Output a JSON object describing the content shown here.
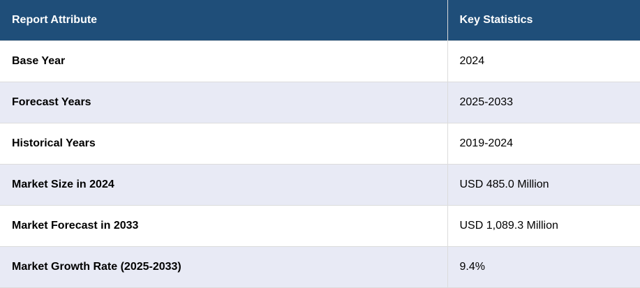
{
  "table": {
    "headers": [
      "Report Attribute",
      "Key Statistics"
    ],
    "rows": [
      [
        "Base Year",
        "2024"
      ],
      [
        "Forecast Years",
        "2025-2033"
      ],
      [
        "Historical Years",
        "2019-2024"
      ],
      [
        "Market Size in 2024",
        "USD 485.0 Million"
      ],
      [
        "Market Forecast in 2033",
        "USD 1,089.3 Million"
      ],
      [
        "Market Growth Rate (2025-2033)",
        "9.4%"
      ]
    ]
  },
  "colors": {
    "header_bg": "#1f4e79",
    "header_text": "#ffffff",
    "stripe_bg": "#e8eaf5"
  }
}
